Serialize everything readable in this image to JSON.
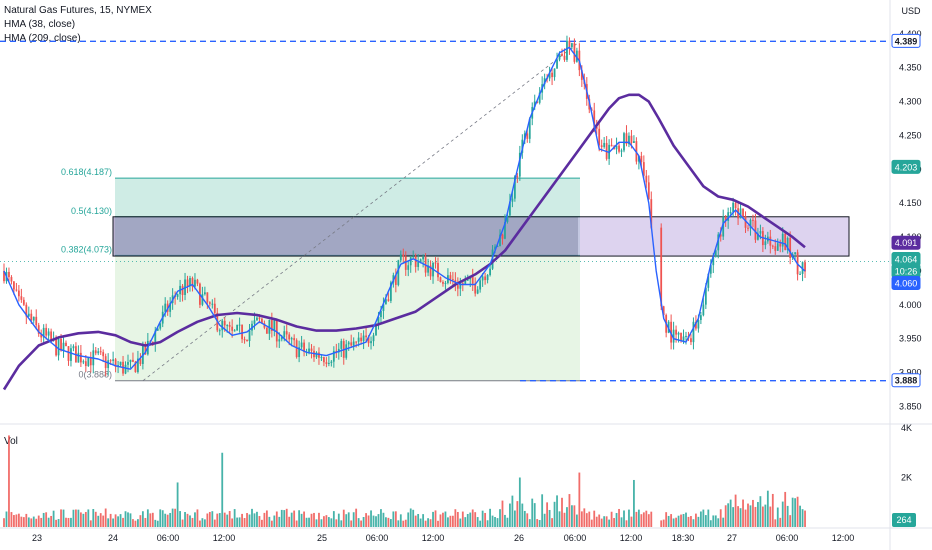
{
  "legend": {
    "symbol": "Natural Gas Futures, 15, NYMEX",
    "hma_fast": "HMA (38, close)",
    "hma_slow": "HMA (209, close)"
  },
  "currency": "USD",
  "volume_label": "Vol",
  "colors": {
    "up": "#26a69a",
    "down": "#ef5350",
    "hma_fast": "#2962ff",
    "hma_slow": "#5b2c9f",
    "fib_zone_upper": "#bfe6dc",
    "fib_zone_lower": "#e3f3e1",
    "box": "#b39ddb",
    "price_tag": "#2962ff"
  },
  "chart_data": {
    "type": "candlestick",
    "y_axis": {
      "min": 3.83,
      "max": 4.45,
      "ticks": [
        "3.850",
        "3.900",
        "3.950",
        "4.000",
        "4.050",
        "4.100",
        "4.150",
        "4.200",
        "4.250",
        "4.300",
        "4.350",
        "4.400"
      ]
    },
    "x_axis": {
      "labels": [
        "23",
        "24",
        "06:00",
        "12:00",
        "25",
        "06:00",
        "12:00",
        "26",
        "06:00",
        "12:00",
        "18:30",
        "27",
        "06:00",
        "12:00"
      ]
    },
    "fib_levels": [
      {
        "label": "0.618(4.187)",
        "value": 4.187
      },
      {
        "label": "0.5(4.130)",
        "value": 4.13
      },
      {
        "label": "0.382(4.073)",
        "value": 4.073
      },
      {
        "label": "0(3.888)",
        "value": 3.888
      }
    ],
    "price_tags": [
      {
        "label": "4.389",
        "value": 4.389,
        "style": "outline"
      },
      {
        "label": "4.203",
        "value": 4.203,
        "style": "green"
      },
      {
        "label": "4.091",
        "value": 4.091,
        "style": "purple"
      },
      {
        "label": "4.064",
        "value": 4.064,
        "style": "green"
      },
      {
        "label": "10:26",
        "value": 4.049,
        "style": "green"
      },
      {
        "label": "4.060",
        "value": 4.06,
        "style": "blue"
      },
      {
        "label": "3.888",
        "value": 3.888,
        "style": "outline"
      }
    ],
    "volume_axis": {
      "ticks": [
        "4K",
        "2K"
      ],
      "max": 4000,
      "current_label": "264"
    },
    "hma_fast_points": [
      [
        0,
        4.05
      ],
      [
        6,
        4.0
      ],
      [
        14,
        3.96
      ],
      [
        22,
        3.935
      ],
      [
        30,
        3.925
      ],
      [
        38,
        3.92
      ],
      [
        45,
        3.91
      ],
      [
        51,
        3.905
      ],
      [
        57,
        3.93
      ],
      [
        63,
        3.975
      ],
      [
        70,
        4.02
      ],
      [
        76,
        4.03
      ],
      [
        82,
        4.0
      ],
      [
        87,
        3.97
      ],
      [
        92,
        3.955
      ],
      [
        98,
        3.96
      ],
      [
        103,
        3.975
      ],
      [
        110,
        3.96
      ],
      [
        116,
        3.94
      ],
      [
        122,
        3.93
      ],
      [
        130,
        3.925
      ],
      [
        138,
        3.935
      ],
      [
        146,
        3.945
      ],
      [
        150,
        3.975
      ],
      [
        155,
        4.02
      ],
      [
        160,
        4.06
      ],
      [
        165,
        4.068
      ],
      [
        172,
        4.055
      ],
      [
        178,
        4.04
      ],
      [
        184,
        4.03
      ],
      [
        190,
        4.03
      ],
      [
        196,
        4.06
      ],
      [
        202,
        4.12
      ],
      [
        207,
        4.2
      ],
      [
        212,
        4.275
      ],
      [
        217,
        4.32
      ],
      [
        221,
        4.35
      ],
      [
        224,
        4.372
      ],
      [
        228,
        4.38
      ],
      [
        232,
        4.36
      ],
      [
        236,
        4.3
      ],
      [
        240,
        4.23
      ],
      [
        244,
        4.225
      ],
      [
        248,
        4.24
      ],
      [
        252,
        4.24
      ],
      [
        256,
        4.22
      ],
      [
        260,
        4.15
      ],
      [
        263,
        4.05
      ],
      [
        266,
        3.98
      ],
      [
        270,
        3.95
      ],
      [
        275,
        3.945
      ],
      [
        280,
        3.98
      ],
      [
        285,
        4.06
      ],
      [
        290,
        4.12
      ],
      [
        295,
        4.14
      ],
      [
        300,
        4.12
      ],
      [
        305,
        4.1
      ],
      [
        310,
        4.095
      ],
      [
        315,
        4.09
      ],
      [
        320,
        4.06
      ],
      [
        323,
        4.05
      ]
    ],
    "hma_slow_points": [
      [
        0,
        3.875
      ],
      [
        6,
        3.91
      ],
      [
        14,
        3.94
      ],
      [
        22,
        3.952
      ],
      [
        30,
        3.958
      ],
      [
        38,
        3.96
      ],
      [
        45,
        3.955
      ],
      [
        51,
        3.945
      ],
      [
        57,
        3.94
      ],
      [
        63,
        3.945
      ],
      [
        70,
        3.96
      ],
      [
        78,
        3.975
      ],
      [
        86,
        3.985
      ],
      [
        94,
        3.988
      ],
      [
        102,
        3.985
      ],
      [
        110,
        3.978
      ],
      [
        118,
        3.968
      ],
      [
        126,
        3.962
      ],
      [
        134,
        3.962
      ],
      [
        142,
        3.965
      ],
      [
        150,
        3.97
      ],
      [
        158,
        3.98
      ],
      [
        166,
        3.99
      ],
      [
        174,
        4.01
      ],
      [
        182,
        4.03
      ],
      [
        190,
        4.045
      ],
      [
        196,
        4.06
      ],
      [
        202,
        4.08
      ],
      [
        208,
        4.11
      ],
      [
        214,
        4.14
      ],
      [
        220,
        4.17
      ],
      [
        226,
        4.2
      ],
      [
        232,
        4.23
      ],
      [
        238,
        4.26
      ],
      [
        244,
        4.29
      ],
      [
        248,
        4.305
      ],
      [
        252,
        4.31
      ],
      [
        256,
        4.31
      ],
      [
        260,
        4.3
      ],
      [
        264,
        4.275
      ],
      [
        270,
        4.235
      ],
      [
        276,
        4.205
      ],
      [
        282,
        4.175
      ],
      [
        288,
        4.16
      ],
      [
        294,
        4.155
      ],
      [
        300,
        4.145
      ],
      [
        306,
        4.13
      ],
      [
        312,
        4.115
      ],
      [
        318,
        4.1
      ],
      [
        323,
        4.085
      ]
    ]
  }
}
